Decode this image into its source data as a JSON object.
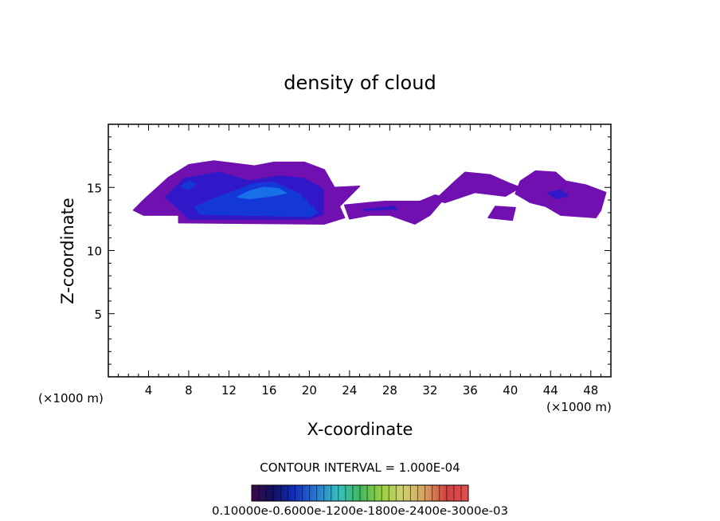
{
  "chart_data": {
    "type": "heatmap",
    "subtype": "filled-contour",
    "title": "density of cloud",
    "xlabel": "X-coordinate",
    "ylabel": "Z-coordinate",
    "x_unit": "(×1000 m)",
    "z_unit": "(×1000 m)",
    "xlim": [
      0,
      50
    ],
    "ylim": [
      0,
      20
    ],
    "xticks": [
      "4",
      "8",
      "12",
      "16",
      "20",
      "24",
      "28",
      "32",
      "36",
      "40",
      "44",
      "48"
    ],
    "xtick_values": [
      4,
      8,
      12,
      16,
      20,
      24,
      28,
      32,
      36,
      40,
      44,
      48
    ],
    "yticks": [
      "5",
      "10",
      "15"
    ],
    "ytick_values": [
      5,
      10,
      15
    ],
    "contour_interval_text": "CONTOUR INTERVAL = 1.000E-04",
    "contour_interval": 0.0001,
    "colorbar": {
      "colors": [
        "#3a0a4a",
        "#101060",
        "#1030c0",
        "#2a7ad0",
        "#35c0c0",
        "#40b860",
        "#9ad040",
        "#d0d070",
        "#d8a060",
        "#d04040",
        "#e05050"
      ],
      "min": 0.0001,
      "max": 0.0031,
      "labels_text": "0.10000e-0.6000e-1200e-1800e-2400e-3000e-03",
      "grid": true
    },
    "regions": [
      {
        "name": "main-cloud",
        "points": [
          [
            2.5,
            13.2
          ],
          [
            3.5,
            14.0
          ],
          [
            6.0,
            15.8
          ],
          [
            8.0,
            16.8
          ],
          [
            10.5,
            17.1
          ],
          [
            14.5,
            16.7
          ],
          [
            16.5,
            17.0
          ],
          [
            19.5,
            17.0
          ],
          [
            21.5,
            16.4
          ],
          [
            22.5,
            15.0
          ],
          [
            25.0,
            15.1
          ],
          [
            23.0,
            13.5
          ],
          [
            23.5,
            12.6
          ],
          [
            21.5,
            12.1
          ],
          [
            7.0,
            12.2
          ],
          [
            7.0,
            12.8
          ],
          [
            3.5,
            12.8
          ]
        ],
        "level": 1
      },
      {
        "name": "main-inner",
        "points": [
          [
            5.5,
            14.2
          ],
          [
            7.5,
            15.8
          ],
          [
            11.0,
            16.3
          ],
          [
            14.0,
            15.6
          ],
          [
            17.0,
            16.0
          ],
          [
            19.5,
            15.8
          ],
          [
            21.5,
            14.9
          ],
          [
            21.5,
            12.8
          ],
          [
            20.0,
            12.4
          ],
          [
            8.0,
            12.4
          ],
          [
            7.0,
            13.2
          ]
        ],
        "level": 2
      },
      {
        "name": "main-core",
        "points": [
          [
            8.5,
            13.5
          ],
          [
            10.5,
            14.2
          ],
          [
            12.5,
            14.8
          ],
          [
            14.5,
            15.4
          ],
          [
            16.5,
            15.5
          ],
          [
            19.0,
            14.6
          ],
          [
            21.0,
            13.0
          ],
          [
            20.0,
            12.6
          ],
          [
            9.0,
            12.8
          ]
        ],
        "level": 3
      },
      {
        "name": "main-peak",
        "points": [
          [
            12.5,
            14.2
          ],
          [
            14.0,
            14.8
          ],
          [
            15.5,
            15.1
          ],
          [
            17.0,
            15.0
          ],
          [
            18.0,
            14.5
          ],
          [
            16.0,
            14.2
          ],
          [
            14.0,
            14.0
          ]
        ],
        "level": 4
      },
      {
        "name": "left-knot",
        "points": [
          [
            7.0,
            15.1
          ],
          [
            8.0,
            15.6
          ],
          [
            9.0,
            15.3
          ],
          [
            8.0,
            14.7
          ]
        ],
        "level": 3
      },
      {
        "name": "bridge",
        "points": [
          [
            23.5,
            13.6
          ],
          [
            26.0,
            13.8
          ],
          [
            27.5,
            13.9
          ],
          [
            31.0,
            13.9
          ],
          [
            32.5,
            14.4
          ],
          [
            33.5,
            14.2
          ],
          [
            32.0,
            12.8
          ],
          [
            30.5,
            12.1
          ],
          [
            28.0,
            12.8
          ],
          [
            26.0,
            12.8
          ],
          [
            24.0,
            12.5
          ]
        ],
        "level": 1
      },
      {
        "name": "bridge-core",
        "points": [
          [
            25.0,
            13.3
          ],
          [
            28.5,
            13.6
          ],
          [
            29.0,
            13.2
          ],
          [
            25.5,
            13.1
          ]
        ],
        "level": 2
      },
      {
        "name": "right-cloud-a",
        "points": [
          [
            32.5,
            14.0
          ],
          [
            34.5,
            15.5
          ],
          [
            35.5,
            16.2
          ],
          [
            38.0,
            16.0
          ],
          [
            40.0,
            15.3
          ],
          [
            41.0,
            15.0
          ],
          [
            39.5,
            14.3
          ],
          [
            36.5,
            14.6
          ],
          [
            33.5,
            13.8
          ]
        ],
        "level": 1
      },
      {
        "name": "right-cloud-b",
        "points": [
          [
            41.0,
            15.5
          ],
          [
            42.5,
            16.3
          ],
          [
            44.5,
            16.2
          ],
          [
            45.5,
            15.5
          ],
          [
            47.5,
            15.2
          ],
          [
            49.5,
            14.6
          ],
          [
            49.0,
            13.2
          ],
          [
            48.5,
            12.6
          ],
          [
            45.0,
            12.8
          ],
          [
            43.5,
            13.5
          ],
          [
            42.0,
            13.8
          ],
          [
            40.5,
            14.5
          ]
        ],
        "level": 1
      },
      {
        "name": "right-cloud-b-core",
        "points": [
          [
            43.5,
            14.6
          ],
          [
            45.0,
            14.9
          ],
          [
            46.0,
            14.3
          ],
          [
            44.5,
            14.0
          ]
        ],
        "level": 2
      },
      {
        "name": "right-small",
        "points": [
          [
            37.8,
            12.6
          ],
          [
            38.5,
            13.5
          ],
          [
            40.5,
            13.4
          ],
          [
            40.2,
            12.4
          ]
        ],
        "level": 1
      }
    ],
    "level_colors": [
      "#7010b0",
      "#3018c8",
      "#1438d8",
      "#1870e8",
      "#4aa0f0"
    ],
    "grid": false,
    "legend": "bottom-center colorbar"
  }
}
